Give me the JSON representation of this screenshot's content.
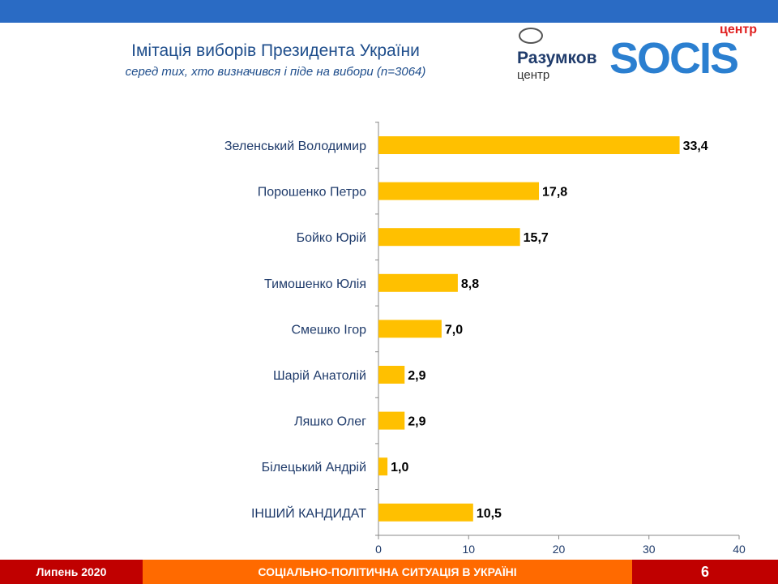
{
  "header": {
    "title": "Імітація виборів Президента України",
    "subtitle": "серед тих, хто визначився і піде на вибори (n=3064)"
  },
  "logos": {
    "razumkov_name": "Разумков",
    "razumkov_sub": "центр",
    "socis_name": "SOCIS",
    "socis_sub": "центр"
  },
  "chart_data": {
    "type": "bar",
    "orientation": "horizontal",
    "categories": [
      "Зеленський Володимир",
      "Порошенко Петро",
      "Бойко Юрій",
      "Тимошенко Юлія",
      "Смешко Ігор",
      "Шарій Анатолій",
      "Ляшко Олег",
      "Білецький Андрій",
      "ІНШИЙ КАНДИДАТ"
    ],
    "values": [
      33.4,
      17.8,
      15.7,
      8.8,
      7.0,
      2.9,
      2.9,
      1.0,
      10.5
    ],
    "value_labels": [
      "33,4",
      "17,8",
      "15,7",
      "8,8",
      "7,0",
      "2,9",
      "2,9",
      "1,0",
      "10,5"
    ],
    "xlim": [
      0,
      40
    ],
    "xticks": [
      "0",
      "10",
      "20",
      "30",
      "40"
    ],
    "grid": false,
    "bar_color": "#ffc000"
  },
  "footer": {
    "date": "Липень 2020",
    "topic": "СОЦІАЛЬНО-ПОЛІТИЧНА СИТУАЦІЯ В УКРАЇНІ",
    "page": "6"
  },
  "colors": {
    "top_bar": "#2a6bc4",
    "footer_red": "#c00000",
    "footer_orange": "#ff6a00"
  }
}
